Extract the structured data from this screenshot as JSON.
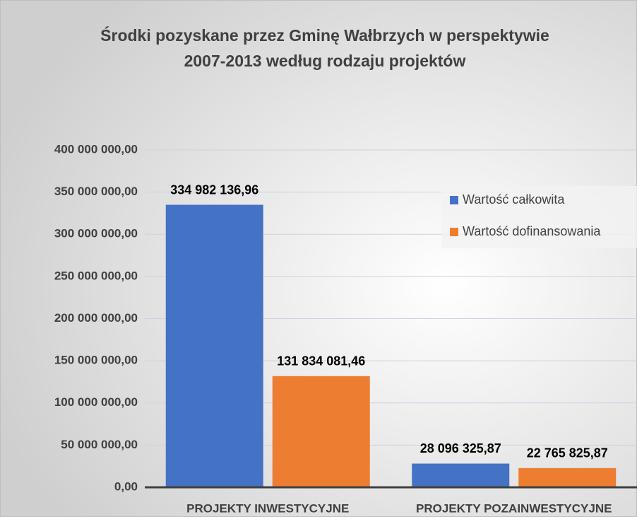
{
  "chart_data": {
    "type": "bar",
    "title": [
      "Środki pozyskane przez Gminę Wałbrzych w perspektywie",
      "2007-2013 według rodzaju projektów"
    ],
    "categories": [
      "PROJEKTY INWESTYCYJNE",
      "PROJEKTY POZAINWESTYCYJNE"
    ],
    "series": [
      {
        "name": "Wartość całkowita",
        "color": "#4472c4",
        "values": [
          334982136.96,
          28096325.87
        ],
        "value_labels": [
          "334 982 136,96",
          "28 096 325,87"
        ]
      },
      {
        "name": "Wartość dofinansowania",
        "color": "#ed7d31",
        "values": [
          131834081.46,
          22765825.87
        ],
        "value_labels": [
          "131 834 081,46",
          "22 765 825,87"
        ]
      }
    ],
    "ylim": [
      0,
      400000000
    ],
    "yticks": [
      {
        "value": 0,
        "label": "0,00"
      },
      {
        "value": 50000000,
        "label": "50 000 000,00"
      },
      {
        "value": 100000000,
        "label": "100 000 000,00"
      },
      {
        "value": 150000000,
        "label": "150 000 000,00"
      },
      {
        "value": 200000000,
        "label": "200 000 000,00"
      },
      {
        "value": 250000000,
        "label": "250 000 000,00"
      },
      {
        "value": 300000000,
        "label": "300 000 000,00"
      },
      {
        "value": 350000000,
        "label": "350 000 000,00"
      },
      {
        "value": 400000000,
        "label": "400 000 000,00"
      }
    ],
    "grid": true,
    "legend": "upper right"
  }
}
